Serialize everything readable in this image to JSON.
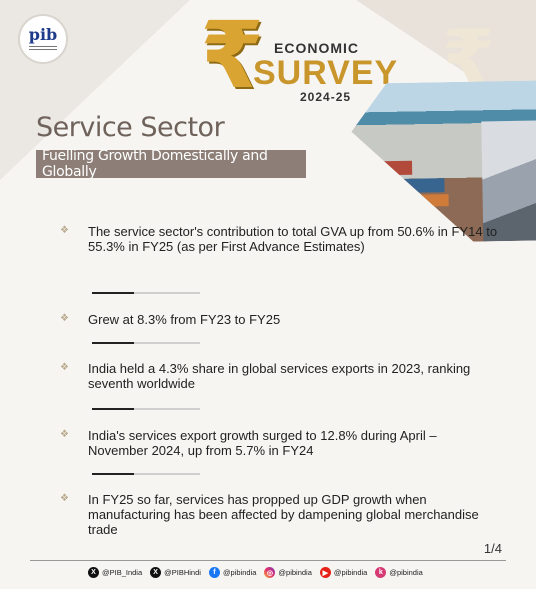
{
  "brand": {
    "logo_text": "pib",
    "economic": "ECONOMIC",
    "survey": "SURVEY",
    "year": "2024-25",
    "rupee_symbol": "₹"
  },
  "header": {
    "title": "Service Sector",
    "subtitle": "Fuelling Growth Domestically and Globally"
  },
  "bullets": [
    {
      "text": "The service sector's contribution to total GVA up from 50.6% in FY14 to 55.3% in FY25 (as per First Advance Estimates)"
    },
    {
      "text": "Grew at 8.3% from FY23 to FY25"
    },
    {
      "text": "India held a 4.3% share in global services exports in 2023, ranking seventh worldwide"
    },
    {
      "text": "India's services export growth surged to 12.8% during April – November 2024, up from 5.7% in FY24"
    },
    {
      "text": "In FY25 so far, services has propped up GDP growth when manufacturing has been affected by dampening global merchandise trade"
    }
  ],
  "bullet_glyph": "❖",
  "page_indicator": "1/4",
  "footer": {
    "handles": [
      {
        "icon": "x-icon",
        "glyph": "X",
        "label": "@PIB_India"
      },
      {
        "icon": "x-icon",
        "glyph": "X",
        "label": "@PIBHindi"
      },
      {
        "icon": "facebook-icon",
        "glyph": "f",
        "label": "@pibindia"
      },
      {
        "icon": "instagram-icon",
        "glyph": "◎",
        "label": "@pibindia"
      },
      {
        "icon": "youtube-icon",
        "glyph": "▶",
        "label": "@pibindia"
      },
      {
        "icon": "kooapp-icon",
        "glyph": "k",
        "label": "@pibindia"
      }
    ]
  },
  "colors": {
    "gold": "#c9962c",
    "title_gray": "#6e625a",
    "band": "#8d7f78"
  }
}
